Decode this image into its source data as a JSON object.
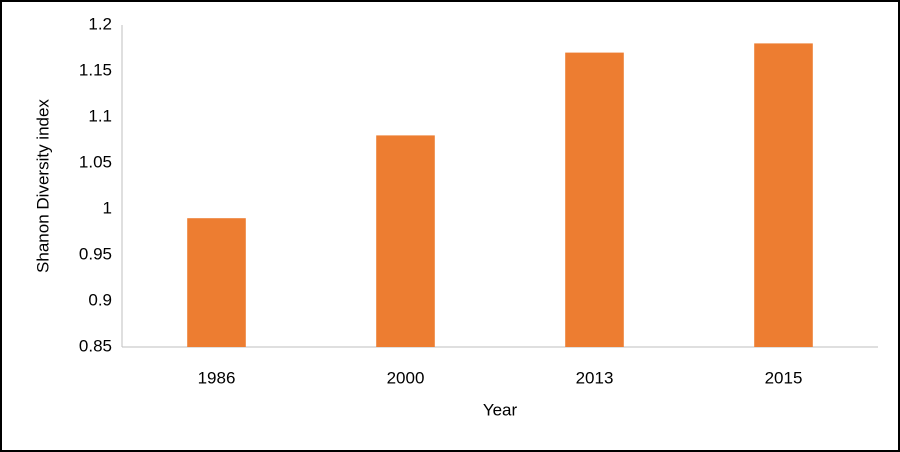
{
  "chart_data": {
    "type": "bar",
    "categories": [
      "1986",
      "2000",
      "2013",
      "2015"
    ],
    "values": [
      0.99,
      1.08,
      1.17,
      1.18
    ],
    "color": "#ed7d31",
    "xlabel": "Year",
    "ylabel": "Shanon Diversity index",
    "ylim": [
      0.85,
      1.2
    ],
    "yticks": [
      0.85,
      0.9,
      0.95,
      1,
      1.05,
      1.1,
      1.15,
      1.2
    ],
    "grid": false
  }
}
